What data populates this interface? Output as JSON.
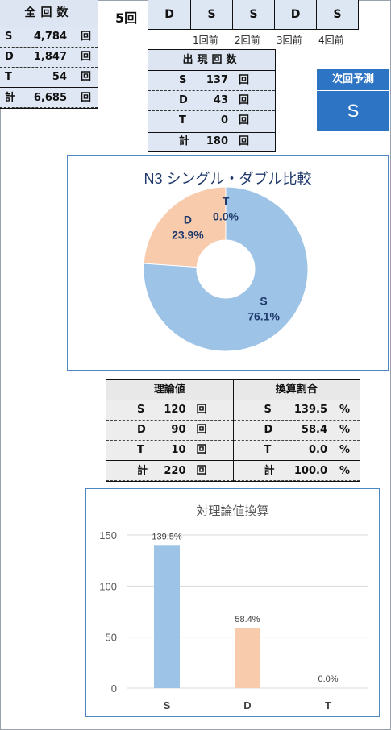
{
  "totals": {
    "header": "全回数",
    "rows": [
      {
        "label": "S",
        "value": "4,784",
        "unit": "回"
      },
      {
        "label": "D",
        "value": "1,847",
        "unit": "回"
      },
      {
        "label": "T",
        "value": "54",
        "unit": "回"
      }
    ],
    "sum": {
      "label": "計",
      "value": "6,685",
      "unit": "回"
    }
  },
  "recent": {
    "label": "5回",
    "results": [
      "D",
      "S",
      "S",
      "D",
      "S"
    ],
    "ago_labels": [
      "1回前",
      "2回前",
      "3回前",
      "4回前"
    ]
  },
  "appearance": {
    "header": "出現回数",
    "rows": [
      {
        "label": "S",
        "value": "137",
        "unit": "回"
      },
      {
        "label": "D",
        "value": "43",
        "unit": "回"
      },
      {
        "label": "T",
        "value": "0",
        "unit": "回"
      }
    ],
    "sum": {
      "label": "計",
      "value": "180",
      "unit": "回"
    }
  },
  "prediction": {
    "title": "次回予測",
    "value": "S"
  },
  "theory": {
    "left_header": "理論値",
    "right_header": "換算割合",
    "left_rows": [
      {
        "label": "S",
        "value": "120",
        "unit": "回"
      },
      {
        "label": "D",
        "value": "90",
        "unit": "回"
      },
      {
        "label": "T",
        "value": "10",
        "unit": "回"
      }
    ],
    "left_sum": {
      "label": "計",
      "value": "220",
      "unit": "回"
    },
    "right_rows": [
      {
        "label": "S",
        "value": "139.5",
        "unit": "%"
      },
      {
        "label": "D",
        "value": "58.4",
        "unit": "%"
      },
      {
        "label": "T",
        "value": "0.0",
        "unit": "%"
      }
    ],
    "right_sum": {
      "label": "計",
      "value": "100.0",
      "unit": "%"
    }
  },
  "colors": {
    "s": "#9dc3e6",
    "d": "#f8cbad",
    "t": "#5b9bd5",
    "label": "#1f3a6b",
    "accent": "#2e74c4"
  },
  "chart_data": [
    {
      "type": "pie",
      "title": "N3 シングル・ダブル比較",
      "categories": [
        "S",
        "D",
        "T"
      ],
      "values": [
        76.1,
        23.9,
        0.0
      ],
      "labels": [
        "76.1%",
        "23.9%",
        "0.0%"
      ],
      "donut": true
    },
    {
      "type": "bar",
      "title": "対理論値換算",
      "categories": [
        "S",
        "D",
        "T"
      ],
      "values": [
        139.5,
        58.4,
        0.0
      ],
      "labels": [
        "139.5%",
        "58.4%",
        "0.0%"
      ],
      "ylim": [
        0,
        150
      ],
      "yticks": [
        0,
        50,
        100,
        150
      ],
      "grid": true
    }
  ]
}
